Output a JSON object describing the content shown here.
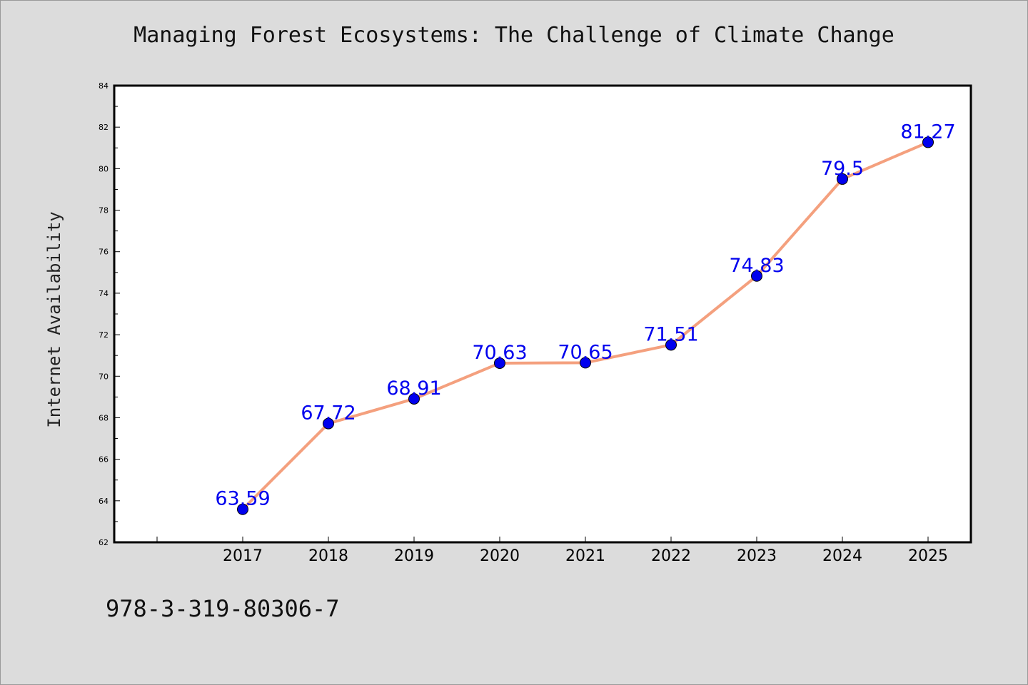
{
  "chart_data": {
    "type": "line",
    "title": "Managing Forest Ecosystems: The Challenge of Climate Change",
    "xlabel": "",
    "ylabel": "Internet Availability",
    "categories": [
      "2017",
      "2018",
      "2019",
      "2020",
      "2021",
      "2022",
      "2023",
      "2024",
      "2025"
    ],
    "series": [
      {
        "values": [
          63.59,
          67.72,
          68.91,
          70.63,
          70.65,
          71.51,
          74.83,
          79.5,
          81.27
        ],
        "labels": [
          "63.59",
          "67.72",
          "68.91",
          "70.63",
          "70.65",
          "71.51",
          "74.83",
          "79.5",
          "81.27"
        ]
      }
    ],
    "ylim": [
      62,
      84
    ],
    "yticks": [
      "62",
      "64",
      "66",
      "68",
      "70",
      "72",
      "74",
      "76",
      "78",
      "80",
      "82",
      "84"
    ],
    "grid": false,
    "legend": "none",
    "colors": {
      "line": "#f4a07e",
      "marker": "#0000ee",
      "data_label": "#0000ee",
      "plot_background": "#ffffff",
      "page_background": "#dcdcdc"
    }
  },
  "footer": {
    "isbn": "978-3-319-80306-7"
  }
}
